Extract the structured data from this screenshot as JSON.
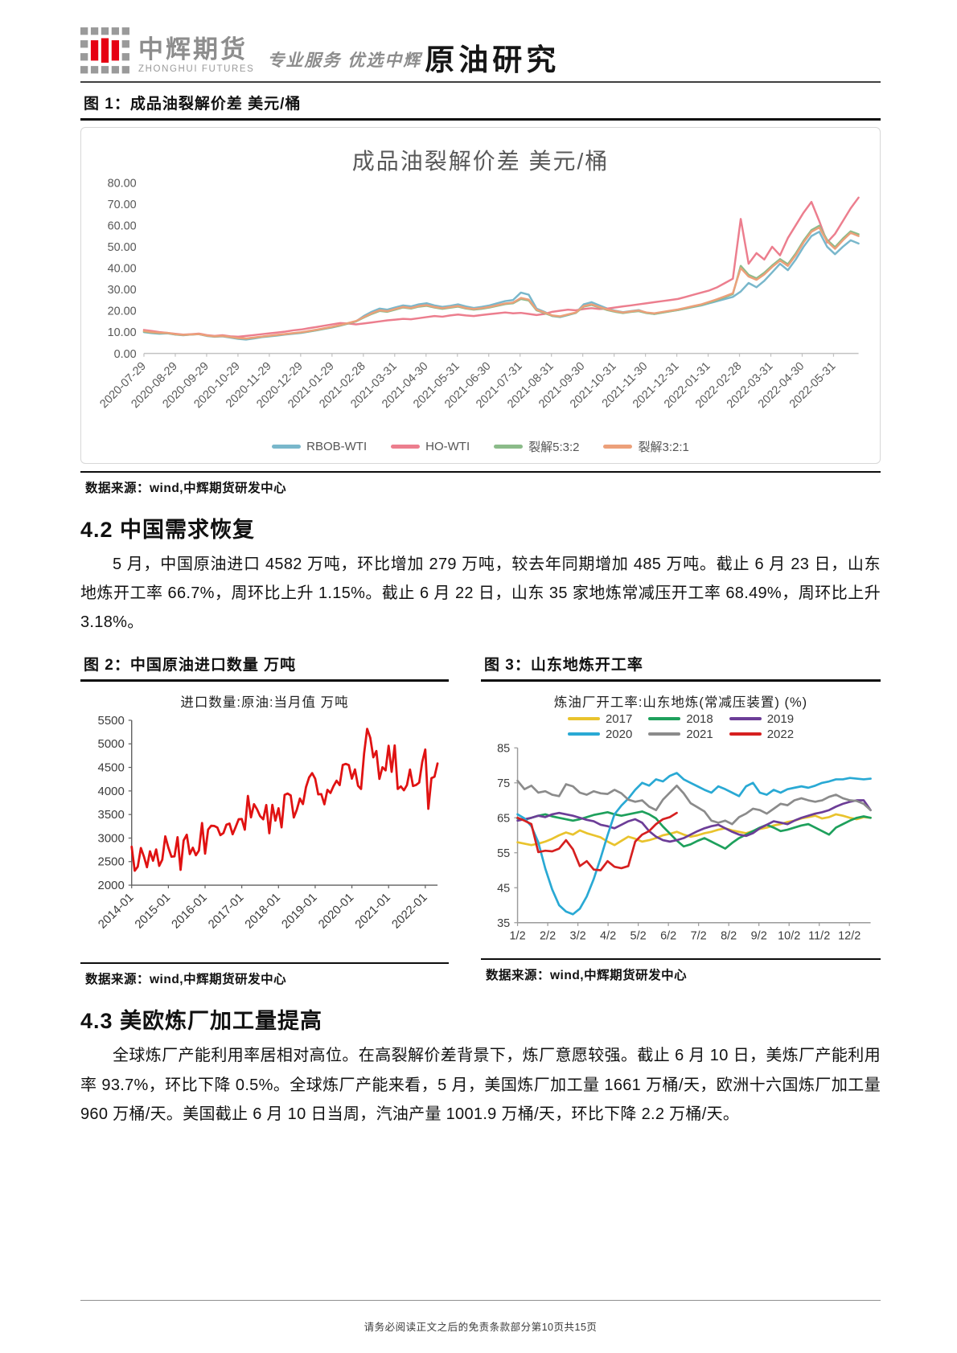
{
  "header": {
    "brand": "中辉期货",
    "brand_en": "ZHONGHUI FUTURES",
    "tagline": "专业服务 优选中辉",
    "report_type": "原油研究",
    "logo_gray": "#9a9a9a",
    "logo_red": "#e60012"
  },
  "figure1": {
    "caption": "图 1：成品油裂解价差 美元/桶",
    "source": "数据来源：wind,中辉期货研发中心"
  },
  "section42": {
    "heading": "4.2 中国需求恢复",
    "paragraph": "5 月，中国原油进口 4582 万吨，环比增加 279 万吨，较去年同期增加 485 万吨。截止 6 月 23 日，山东地炼开工率 66.7%，周环比上升 1.15%。截止 6 月 22 日，山东 35 家地炼常减压开工率 68.49%，周环比上升 3.18%。"
  },
  "figure2": {
    "caption": "图 2：中国原油进口数量 万吨",
    "source": "数据来源：wind,中辉期货研发中心"
  },
  "figure3": {
    "caption": "图 3：山东地炼开工率",
    "source": "数据来源：wind,中辉期货研发中心"
  },
  "section43": {
    "heading": "4.3 美欧炼厂加工量提高",
    "paragraph": "全球炼厂产能利用率居相对高位。在高裂解价差背景下，炼厂意愿较强。截止 6 月 10 日，美炼厂产能利用率 93.7%，环比下降 0.5%。全球炼厂产能来看，5 月，美国炼厂加工量 1661 万桶/天，欧洲十六国炼厂加工量 960 万桶/天。美国截止 6 月 10 日当周，汽油产量 1001.9 万桶/天，环比下降 2.2 万桶/天。"
  },
  "footer": {
    "disclaimer": "请务必阅读正文之后的免责条款部分第10页共15页"
  },
  "chart_data": [
    {
      "type": "line",
      "title": "成品油裂解价差 美元/桶",
      "ylabel": "美元/桶",
      "ylim": [
        0,
        80
      ],
      "ytick_step": 10,
      "ytick_decimals": 2,
      "grid": false,
      "legend_position": "bottom",
      "x_tick_span": 0.965,
      "x_tick_labels": [
        "2020-07-29",
        "2020-08-29",
        "2020-09-29",
        "2020-10-29",
        "2020-11-29",
        "2020-12-29",
        "2021-01-29",
        "2021-02-28",
        "2021-03-31",
        "2021-04-30",
        "2021-05-31",
        "2021-06-30",
        "2021-07-31",
        "2021-08-31",
        "2021-09-30",
        "2021-10-31",
        "2021-11-30",
        "2021-12-31",
        "2022-01-31",
        "2022-02-28",
        "2022-03-31",
        "2022-04-30",
        "2022-05-31"
      ],
      "series": [
        {
          "name": "RBOB-WTI",
          "color": "#79b7cb",
          "values": [
            10.0,
            9.5,
            9.2,
            9.4,
            8.8,
            8.5,
            8.8,
            9.0,
            8.2,
            7.8,
            8.0,
            7.4,
            6.8,
            6.5,
            7.0,
            7.6,
            8.0,
            8.4,
            8.8,
            9.2,
            9.6,
            10.2,
            10.8,
            11.5,
            12.2,
            13.0,
            14.0,
            15.0,
            17.5,
            19.5,
            21.0,
            20.5,
            21.5,
            22.5,
            22.0,
            23.0,
            23.5,
            22.5,
            21.8,
            22.3,
            23.0,
            22.0,
            21.3,
            21.8,
            22.5,
            23.5,
            24.5,
            25.0,
            28.5,
            27.5,
            21.0,
            19.5,
            17.5,
            17.0,
            18.0,
            19.0,
            23.0,
            24.0,
            22.5,
            21.0,
            20.0,
            19.3,
            19.8,
            20.3,
            19.0,
            18.5,
            19.2,
            19.8,
            20.3,
            21.0,
            21.8,
            22.5,
            23.5,
            24.5,
            25.5,
            26.5,
            29.0,
            33.0,
            31.0,
            34.0,
            38.0,
            42.0,
            39.0,
            44.0,
            50.0,
            55.0,
            57.0,
            50.0,
            46.5,
            50.0,
            53.0,
            51.5
          ]
        },
        {
          "name": "HO-WTI",
          "color": "#ec7e8e",
          "values": [
            11.0,
            10.5,
            10.0,
            9.6,
            9.2,
            8.8,
            9.0,
            9.3,
            8.6,
            8.2,
            8.5,
            8.0,
            7.8,
            8.2,
            8.6,
            9.0,
            9.4,
            9.8,
            10.2,
            10.8,
            11.2,
            11.8,
            12.4,
            13.0,
            13.6,
            14.2,
            14.0,
            13.6,
            14.0,
            14.5,
            15.0,
            15.5,
            15.8,
            16.2,
            16.0,
            16.5,
            17.0,
            17.5,
            17.2,
            17.8,
            18.2,
            17.8,
            17.5,
            18.0,
            18.4,
            18.8,
            19.2,
            18.8,
            19.0,
            18.5,
            18.0,
            18.5,
            19.5,
            20.0,
            20.5,
            20.2,
            20.8,
            21.2,
            20.8,
            21.0,
            21.5,
            22.0,
            22.5,
            23.0,
            23.5,
            24.0,
            24.5,
            25.0,
            25.5,
            26.5,
            27.5,
            28.5,
            29.5,
            31.0,
            33.0,
            35.0,
            63.0,
            42.0,
            47.0,
            44.0,
            50.0,
            46.0,
            54.0,
            60.0,
            66.0,
            71.0,
            62.0,
            52.0,
            56.0,
            62.0,
            68.0,
            73.0
          ]
        },
        {
          "name": "裂解5:3:2",
          "color": "#8bbb89",
          "values": [
            10.2,
            9.8,
            9.5,
            9.5,
            8.9,
            8.6,
            8.8,
            9.0,
            8.3,
            7.9,
            8.1,
            7.6,
            7.1,
            6.9,
            7.3,
            7.8,
            8.2,
            8.6,
            9.0,
            9.4,
            9.8,
            10.3,
            10.9,
            11.6,
            12.3,
            13.1,
            14.0,
            15.0,
            16.8,
            18.5,
            19.9,
            19.5,
            20.5,
            21.5,
            21.0,
            21.9,
            22.3,
            21.5,
            20.9,
            21.4,
            21.9,
            21.0,
            20.5,
            20.9,
            21.5,
            22.3,
            23.1,
            23.5,
            25.5,
            24.8,
            20.2,
            18.9,
            17.6,
            17.2,
            18.1,
            19.0,
            21.9,
            22.7,
            21.5,
            20.3,
            19.5,
            18.9,
            19.4,
            19.8,
            18.9,
            18.5,
            19.1,
            19.7,
            20.3,
            21.1,
            21.9,
            22.7,
            23.9,
            25.0,
            26.4,
            27.8,
            41.0,
            36.8,
            35.2,
            37.8,
            41.2,
            44.2,
            41.8,
            46.8,
            52.8,
            57.8,
            59.8,
            53.2,
            49.8,
            53.8,
            57.2,
            55.8
          ]
        },
        {
          "name": "裂解3:2:1",
          "color": "#eca07a",
          "values": [
            10.5,
            10.0,
            9.7,
            9.6,
            9.0,
            8.7,
            8.9,
            9.1,
            8.4,
            8.0,
            8.2,
            7.7,
            7.2,
            7.0,
            7.4,
            7.9,
            8.3,
            8.7,
            9.1,
            9.5,
            9.9,
            10.5,
            11.1,
            11.8,
            12.5,
            13.3,
            14.2,
            15.2,
            17.0,
            18.8,
            20.2,
            19.8,
            20.8,
            21.8,
            21.3,
            22.2,
            22.6,
            21.8,
            21.2,
            21.7,
            22.2,
            21.3,
            20.8,
            21.2,
            21.8,
            22.6,
            23.4,
            23.8,
            26.0,
            25.2,
            20.5,
            19.2,
            17.8,
            17.4,
            18.3,
            19.2,
            22.2,
            23.0,
            21.8,
            20.6,
            19.8,
            19.2,
            19.7,
            20.1,
            19.2,
            18.8,
            19.4,
            20.0,
            20.6,
            21.4,
            22.2,
            23.0,
            24.2,
            25.4,
            26.8,
            28.2,
            40.0,
            36.0,
            34.5,
            37.0,
            40.5,
            43.5,
            41.0,
            46.0,
            52.0,
            57.0,
            59.0,
            52.5,
            49.0,
            53.0,
            56.5,
            55.0
          ]
        }
      ]
    },
    {
      "type": "line",
      "title": "进口数量:原油:当月值 万吨",
      "ylim": [
        2000,
        5500
      ],
      "ytick_step": 500,
      "ytick_decimals": 0,
      "grid": false,
      "x_tick_span": 0.96,
      "x_tick_labels": [
        "2014-01",
        "2015-01",
        "2016-01",
        "2017-01",
        "2018-01",
        "2019-01",
        "2020-01",
        "2021-01",
        "2022-01"
      ],
      "series": [
        {
          "name": "进口数量:原油:当月值",
          "color": "#e01212",
          "values": [
            2816,
            2305,
            2392,
            2788,
            2608,
            2380,
            2718,
            2519,
            2757,
            2409,
            2541,
            3037,
            2798,
            2605,
            2611,
            3017,
            2324,
            2949,
            3071,
            2659,
            2795,
            2635,
            2736,
            3319,
            2669,
            3180,
            3261,
            3258,
            3224,
            3062,
            3106,
            3285,
            3306,
            3080,
            3235,
            3400,
            3403,
            3178,
            3895,
            3439,
            3720,
            3611,
            3466,
            3398,
            3701,
            3103,
            3704,
            3370,
            3633,
            3226,
            3917,
            3946,
            3904,
            3435,
            3602,
            3838,
            3721,
            4080,
            4287,
            4378,
            4260,
            3928,
            3934,
            3716,
            4023,
            3958,
            4104,
            4217,
            4124,
            4551,
            4574,
            4548,
            4262,
            4456,
            4110,
            4043,
            4797,
            5318,
            5129,
            4713,
            4848,
            4256,
            4502,
            4436,
            4960,
            4405,
            4966,
            4043,
            4097,
            4014,
            4124,
            4453,
            4105,
            4128,
            4179,
            4614,
            4880,
            3621,
            4271,
            4303,
            4582
          ]
        }
      ]
    },
    {
      "type": "line",
      "title": "炼油厂开工率:山东地炼(常减压装置) (%)",
      "ylim": [
        35,
        85
      ],
      "ytick_step": 10,
      "ytick_decimals": 0,
      "grid": false,
      "legend_position": "top",
      "legend_rows": [
        [
          "2017",
          "2018",
          "2019"
        ],
        [
          "2020",
          "2021",
          "2022"
        ]
      ],
      "n": 52,
      "x_tick_span": 0.94,
      "x_tick_labels": [
        "1/2",
        "2/2",
        "3/2",
        "4/2",
        "5/2",
        "6/2",
        "7/2",
        "8/2",
        "9/2",
        "10/2",
        "11/2",
        "12/2"
      ],
      "series": [
        {
          "name": "2017",
          "color": "#e9c32d",
          "values": [
            58.0,
            57.6,
            57.2,
            57.6,
            58.2,
            59.0,
            60.0,
            60.8,
            60.2,
            61.4,
            60.6,
            60.0,
            59.4,
            58.2,
            57.2,
            58.4,
            59.6,
            59.0,
            58.2,
            58.6,
            59.2,
            60.0,
            60.4,
            61.0,
            60.2,
            59.6,
            60.0,
            60.6,
            61.0,
            61.6,
            62.0,
            61.4,
            61.0,
            60.6,
            61.2,
            61.8,
            62.2,
            62.8,
            63.2,
            63.8,
            64.2,
            64.8,
            65.2,
            65.6,
            64.8,
            65.2,
            66.0,
            65.6,
            65.0,
            64.6,
            65.2,
            65.0
          ]
        },
        {
          "name": "2018",
          "color": "#1ea05c",
          "values": [
            64.8,
            64.4,
            65.0,
            65.6,
            66.0,
            65.4,
            65.0,
            64.6,
            64.2,
            64.6,
            65.2,
            65.8,
            66.2,
            66.6,
            66.0,
            65.6,
            66.0,
            66.4,
            66.8,
            66.0,
            64.8,
            62.5,
            60.5,
            58.5,
            56.8,
            57.4,
            58.4,
            59.2,
            58.2,
            57.2,
            56.2,
            57.8,
            59.2,
            60.2,
            61.2,
            62.2,
            63.0,
            62.2,
            61.2,
            61.6,
            62.2,
            62.8,
            63.2,
            62.2,
            61.2,
            60.2,
            62.2,
            63.2,
            64.2,
            65.0,
            65.4,
            65.0
          ]
        },
        {
          "name": "2019",
          "color": "#6c3d97",
          "values": [
            64.2,
            64.6,
            65.0,
            65.6,
            65.2,
            66.0,
            66.4,
            66.0,
            65.6,
            65.0,
            64.4,
            64.0,
            63.0,
            62.6,
            62.0,
            63.0,
            64.0,
            64.6,
            63.6,
            61.2,
            59.6,
            58.6,
            58.2,
            58.6,
            59.2,
            60.2,
            61.2,
            62.0,
            62.6,
            63.0,
            62.0,
            61.0,
            60.2,
            59.8,
            60.6,
            62.0,
            63.0,
            64.0,
            63.6,
            63.2,
            64.2,
            65.0,
            65.6,
            66.2,
            66.6,
            67.2,
            68.2,
            69.0,
            69.6,
            70.0,
            70.0,
            67.2
          ]
        },
        {
          "name": "2020",
          "color": "#29a9d4",
          "values": [
            66.0,
            64.8,
            62.6,
            58.0,
            50.5,
            44.5,
            40.0,
            38.2,
            37.4,
            39.0,
            42.5,
            47.5,
            53.5,
            60.0,
            66.0,
            68.5,
            70.5,
            73.0,
            75.0,
            74.2,
            76.0,
            75.4,
            77.0,
            77.8,
            76.0,
            75.0,
            74.0,
            73.0,
            72.2,
            74.0,
            73.2,
            72.2,
            71.2,
            74.0,
            75.0,
            72.2,
            71.6,
            73.0,
            72.2,
            73.2,
            73.6,
            74.0,
            73.6,
            74.2,
            75.0,
            75.4,
            76.0,
            76.0,
            76.4,
            76.2,
            76.0,
            76.2
          ]
        },
        {
          "name": "2021",
          "color": "#8b8b8b",
          "values": [
            75.6,
            73.2,
            74.2,
            72.2,
            72.6,
            71.6,
            71.2,
            74.6,
            74.0,
            72.2,
            71.6,
            72.6,
            72.0,
            71.8,
            73.0,
            72.0,
            70.2,
            69.6,
            70.0,
            68.2,
            67.2,
            70.2,
            72.2,
            74.2,
            72.0,
            69.2,
            68.0,
            66.8,
            64.2,
            63.6,
            64.2,
            63.2,
            65.2,
            66.2,
            67.6,
            67.2,
            66.2,
            67.6,
            69.0,
            68.6,
            70.0,
            70.6,
            70.0,
            69.6,
            70.0,
            71.0,
            71.6,
            70.6,
            70.0,
            69.8,
            69.0,
            67.2
          ]
        },
        {
          "name": "2022",
          "color": "#d62020",
          "values": [
            65.0,
            64.2,
            63.2,
            55.2,
            55.6,
            55.4,
            56.2,
            58.6,
            56.0,
            51.2,
            52.6,
            50.2,
            50.0,
            52.6,
            51.0,
            50.6,
            51.2,
            58.2,
            60.2,
            61.2,
            63.2,
            64.6,
            65.2,
            66.4
          ]
        }
      ]
    }
  ]
}
